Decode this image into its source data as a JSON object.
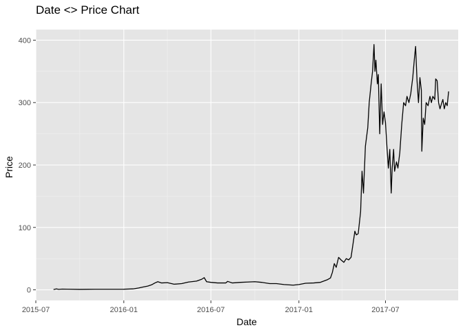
{
  "chart_data": {
    "type": "line",
    "title": "Date <> Price Chart",
    "xlabel": "Date",
    "ylabel": "Price",
    "xlim": [
      "2015-07-01",
      "2017-11-30"
    ],
    "ylim": [
      -17,
      417
    ],
    "x_ticks": [
      {
        "date": "2015-07-01",
        "label": "2015-07"
      },
      {
        "date": "2016-01-01",
        "label": "2016-01"
      },
      {
        "date": "2016-07-01",
        "label": "2016-07"
      },
      {
        "date": "2017-01-01",
        "label": "2017-01"
      },
      {
        "date": "2017-07-01",
        "label": "2017-07"
      }
    ],
    "y_ticks": [
      0,
      100,
      200,
      300,
      400
    ],
    "grid": true,
    "background_color": "#e5e5e5",
    "line_color": "#000000",
    "series": [
      {
        "points": [
          [
            "2015-08-07",
            0.5
          ],
          [
            "2015-08-13",
            1.5
          ],
          [
            "2015-08-18",
            0.8
          ],
          [
            "2015-08-25",
            1.2
          ],
          [
            "2015-09-05",
            1.0
          ],
          [
            "2015-10-01",
            0.7
          ],
          [
            "2015-11-01",
            0.9
          ],
          [
            "2015-12-01",
            0.9
          ],
          [
            "2016-01-01",
            0.95
          ],
          [
            "2016-01-20",
            1.5
          ],
          [
            "2016-02-01",
            3.0
          ],
          [
            "2016-02-10",
            4.5
          ],
          [
            "2016-02-20",
            6.0
          ],
          [
            "2016-02-28",
            8.0
          ],
          [
            "2016-03-06",
            11.0
          ],
          [
            "2016-03-12",
            13.0
          ],
          [
            "2016-03-20",
            11.0
          ],
          [
            "2016-04-01",
            11.5
          ],
          [
            "2016-04-15",
            9.0
          ],
          [
            "2016-05-01",
            10.0
          ],
          [
            "2016-05-15",
            12.5
          ],
          [
            "2016-06-01",
            14.0
          ],
          [
            "2016-06-12",
            17.0
          ],
          [
            "2016-06-17",
            19.5
          ],
          [
            "2016-06-22",
            13.0
          ],
          [
            "2016-07-01",
            12.0
          ],
          [
            "2016-07-15",
            11.0
          ],
          [
            "2016-08-01",
            11.0
          ],
          [
            "2016-08-05",
            13.5
          ],
          [
            "2016-08-15",
            11.0
          ],
          [
            "2016-09-01",
            12.0
          ],
          [
            "2016-09-15",
            12.5
          ],
          [
            "2016-10-01",
            13.0
          ],
          [
            "2016-10-15",
            12.0
          ],
          [
            "2016-11-01",
            10.0
          ],
          [
            "2016-11-15",
            10.0
          ],
          [
            "2016-12-01",
            8.5
          ],
          [
            "2016-12-20",
            7.5
          ],
          [
            "2017-01-01",
            8.5
          ],
          [
            "2017-01-15",
            10.5
          ],
          [
            "2017-02-01",
            11.0
          ],
          [
            "2017-02-15",
            12.0
          ],
          [
            "2017-03-01",
            16.0
          ],
          [
            "2017-03-08",
            19.0
          ],
          [
            "2017-03-12",
            28.0
          ],
          [
            "2017-03-16",
            42.0
          ],
          [
            "2017-03-20",
            36.0
          ],
          [
            "2017-03-25",
            52.0
          ],
          [
            "2017-03-30",
            48.0
          ],
          [
            "2017-04-05",
            44.0
          ],
          [
            "2017-04-10",
            50.0
          ],
          [
            "2017-04-15",
            48.0
          ],
          [
            "2017-04-20",
            52.0
          ],
          [
            "2017-04-25",
            78.0
          ],
          [
            "2017-04-28",
            94.0
          ],
          [
            "2017-05-01",
            88.0
          ],
          [
            "2017-05-05",
            90.0
          ],
          [
            "2017-05-10",
            125.0
          ],
          [
            "2017-05-13",
            190.0
          ],
          [
            "2017-05-16",
            155.0
          ],
          [
            "2017-05-20",
            230.0
          ],
          [
            "2017-05-25",
            260.0
          ],
          [
            "2017-05-28",
            300.0
          ],
          [
            "2017-06-01",
            330.0
          ],
          [
            "2017-06-04",
            350.0
          ],
          [
            "2017-06-07",
            393.0
          ],
          [
            "2017-06-09",
            350.0
          ],
          [
            "2017-06-11",
            368.0
          ],
          [
            "2017-06-14",
            330.0
          ],
          [
            "2017-06-16",
            345.0
          ],
          [
            "2017-06-19",
            250.0
          ],
          [
            "2017-06-22",
            330.0
          ],
          [
            "2017-06-25",
            265.0
          ],
          [
            "2017-06-28",
            285.0
          ],
          [
            "2017-07-01",
            268.0
          ],
          [
            "2017-07-04",
            230.0
          ],
          [
            "2017-07-07",
            195.0
          ],
          [
            "2017-07-10",
            225.0
          ],
          [
            "2017-07-13",
            155.0
          ],
          [
            "2017-07-15",
            195.0
          ],
          [
            "2017-07-18",
            225.0
          ],
          [
            "2017-07-20",
            190.0
          ],
          [
            "2017-07-24",
            205.0
          ],
          [
            "2017-07-27",
            195.0
          ],
          [
            "2017-07-31",
            220.0
          ],
          [
            "2017-08-04",
            265.0
          ],
          [
            "2017-08-08",
            300.0
          ],
          [
            "2017-08-12",
            295.0
          ],
          [
            "2017-08-15",
            310.0
          ],
          [
            "2017-08-19",
            300.0
          ],
          [
            "2017-08-23",
            315.0
          ],
          [
            "2017-08-27",
            340.0
          ],
          [
            "2017-08-31",
            375.0
          ],
          [
            "2017-09-02",
            390.0
          ],
          [
            "2017-09-05",
            335.0
          ],
          [
            "2017-09-08",
            300.0
          ],
          [
            "2017-09-11",
            340.0
          ],
          [
            "2017-09-14",
            320.0
          ],
          [
            "2017-09-15",
            222.0
          ],
          [
            "2017-09-18",
            275.0
          ],
          [
            "2017-09-21",
            265.0
          ],
          [
            "2017-09-24",
            300.0
          ],
          [
            "2017-09-28",
            295.0
          ],
          [
            "2017-10-02",
            310.0
          ],
          [
            "2017-10-05",
            300.0
          ],
          [
            "2017-10-08",
            310.0
          ],
          [
            "2017-10-12",
            305.0
          ],
          [
            "2017-10-14",
            338.0
          ],
          [
            "2017-10-17",
            335.0
          ],
          [
            "2017-10-20",
            300.0
          ],
          [
            "2017-10-23",
            290.0
          ],
          [
            "2017-10-26",
            298.0
          ],
          [
            "2017-10-29",
            305.0
          ],
          [
            "2017-11-01",
            290.0
          ],
          [
            "2017-11-04",
            300.0
          ],
          [
            "2017-11-07",
            295.0
          ],
          [
            "2017-11-10",
            318.0
          ]
        ]
      }
    ]
  }
}
